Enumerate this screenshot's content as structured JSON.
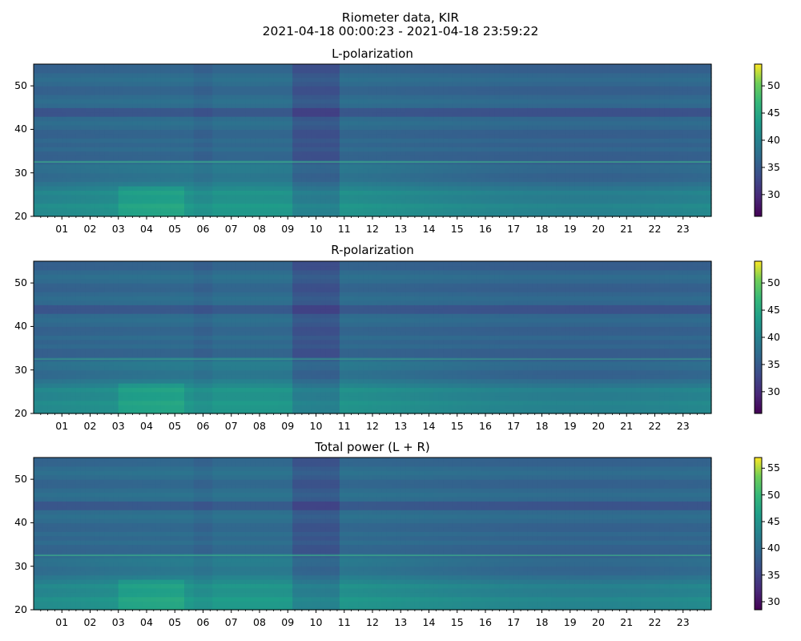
{
  "figure": {
    "title_line1": "Riometer data, KIR",
    "title_line2": "2021-04-18 00:00:23 - 2021-04-18 23:59:22"
  },
  "colormap": "viridis",
  "chart_data": [
    {
      "type": "heatmap",
      "title": "L-polarization",
      "x_axis": {
        "start": "2021-04-18 00:00:23",
        "end": "2021-04-18 23:59:22",
        "tick_labels": [
          "01",
          "02",
          "03",
          "04",
          "05",
          "06",
          "07",
          "08",
          "09",
          "10",
          "11",
          "12",
          "13",
          "14",
          "15",
          "16",
          "17",
          "18",
          "19",
          "20",
          "21",
          "22",
          "23"
        ]
      },
      "y_axis": {
        "ylim": [
          20,
          55
        ],
        "ticks": [
          20,
          30,
          40,
          50
        ]
      },
      "colorbar": {
        "range": [
          26,
          54
        ],
        "ticks": [
          30,
          35,
          40,
          45,
          50
        ]
      }
    },
    {
      "type": "heatmap",
      "title": "R-polarization",
      "x_axis": {
        "start": "2021-04-18 00:00:23",
        "end": "2021-04-18 23:59:22",
        "tick_labels": [
          "01",
          "02",
          "03",
          "04",
          "05",
          "06",
          "07",
          "08",
          "09",
          "10",
          "11",
          "12",
          "13",
          "14",
          "15",
          "16",
          "17",
          "18",
          "19",
          "20",
          "21",
          "22",
          "23"
        ]
      },
      "y_axis": {
        "ylim": [
          20,
          55
        ],
        "ticks": [
          20,
          30,
          40,
          50
        ]
      },
      "colorbar": {
        "range": [
          26,
          54
        ],
        "ticks": [
          30,
          35,
          40,
          45,
          50
        ]
      }
    },
    {
      "type": "heatmap",
      "title": "Total power (L + R)",
      "x_axis": {
        "start": "2021-04-18 00:00:23",
        "end": "2021-04-18 23:59:22",
        "tick_labels": [
          "01",
          "02",
          "03",
          "04",
          "05",
          "06",
          "07",
          "08",
          "09",
          "10",
          "11",
          "12",
          "13",
          "14",
          "15",
          "16",
          "17",
          "18",
          "19",
          "20",
          "21",
          "22",
          "23"
        ]
      },
      "y_axis": {
        "ylim": [
          20,
          55
        ],
        "ticks": [
          20,
          30,
          40,
          50
        ]
      },
      "colorbar": {
        "range": [
          28.5,
          57
        ],
        "ticks": [
          30,
          35,
          40,
          45,
          50,
          55
        ]
      }
    }
  ]
}
